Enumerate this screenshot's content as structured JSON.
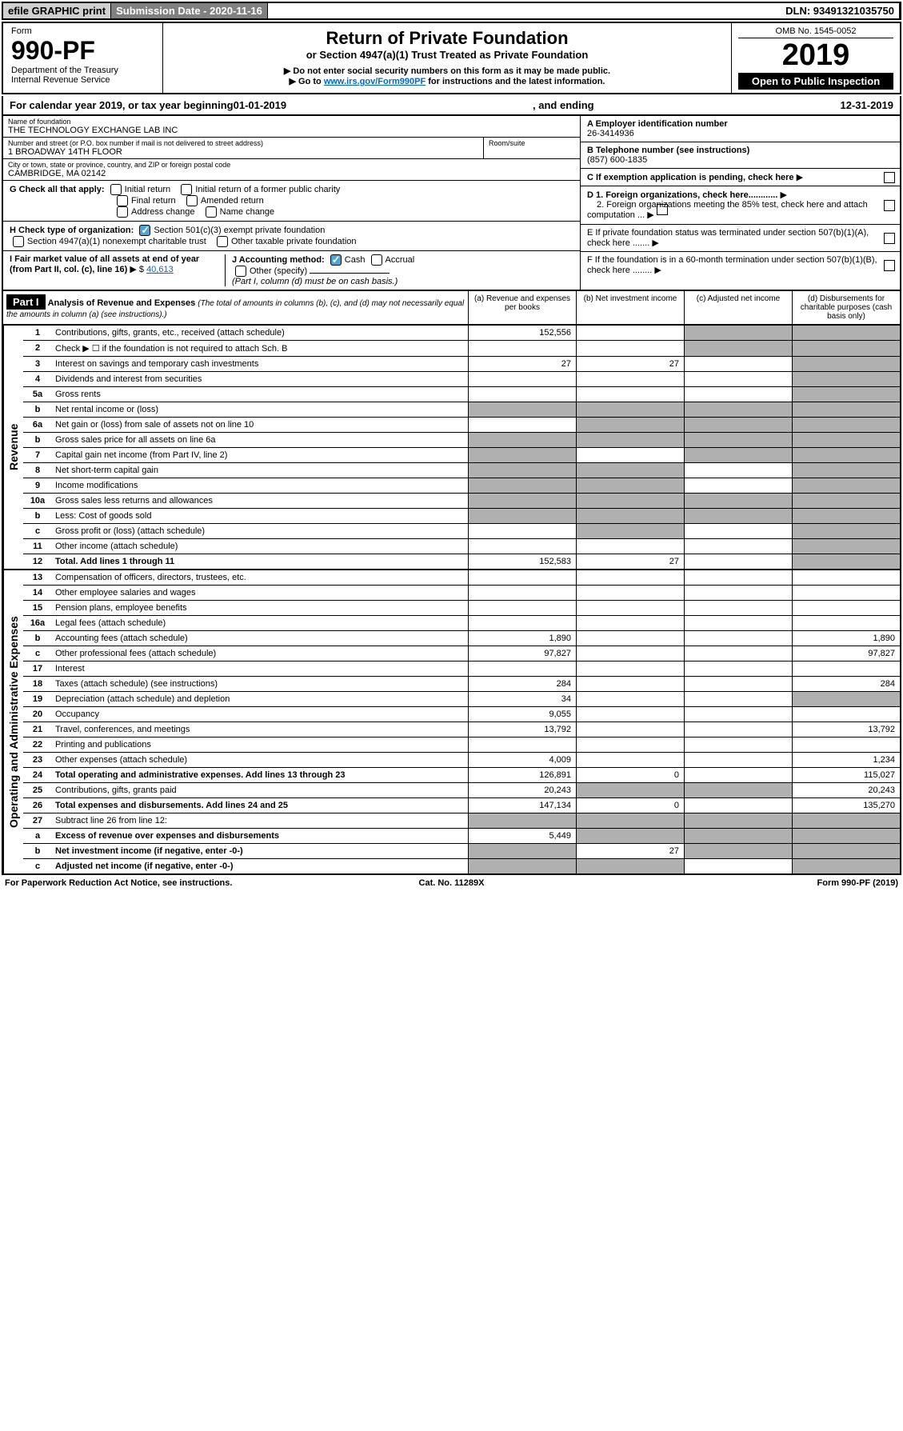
{
  "topbar": {
    "efile": "efile GRAPHIC print",
    "submission": "Submission Date - 2020-11-16",
    "dln": "DLN: 93491321035750"
  },
  "header": {
    "form_label": "Form",
    "form_num": "990-PF",
    "dept": "Department of the Treasury",
    "irs": "Internal Revenue Service",
    "title": "Return of Private Foundation",
    "subtitle": "or Section 4947(a)(1) Trust Treated as Private Foundation",
    "warn1": "Do not enter social security numbers on this form as it may be made public.",
    "warn2_prefix": "Go to ",
    "warn2_link": "www.irs.gov/Form990PF",
    "warn2_suffix": " for instructions and the latest information.",
    "omb": "OMB No. 1545-0052",
    "year": "2019",
    "open": "Open to Public Inspection"
  },
  "calyear": {
    "prefix": "For calendar year 2019, or tax year beginning ",
    "start": "01-01-2019",
    "mid": ", and ending ",
    "end": "12-31-2019"
  },
  "info": {
    "name_label": "Name of foundation",
    "name": "THE TECHNOLOGY EXCHANGE LAB INC",
    "addr_label": "Number and street (or P.O. box number if mail is not delivered to street address)",
    "addr": "1 BROADWAY 14TH FLOOR",
    "room_label": "Room/suite",
    "city_label": "City or town, state or province, country, and ZIP or foreign postal code",
    "city": "CAMBRIDGE, MA  02142",
    "ein_label": "A Employer identification number",
    "ein": "26-3414936",
    "phone_label": "B Telephone number (see instructions)",
    "phone": "(857) 600-1835",
    "c_label": "C If exemption application is pending, check here",
    "d1": "D 1. Foreign organizations, check here............",
    "d2": "2. Foreign organizations meeting the 85% test, check here and attach computation ...",
    "e_label": "E  If private foundation status was terminated under section 507(b)(1)(A), check here .......",
    "f_label": "F  If the foundation is in a 60-month termination under section 507(b)(1)(B), check here ........"
  },
  "checks": {
    "g_label": "G Check all that apply:",
    "g1": "Initial return",
    "g2": "Initial return of a former public charity",
    "g3": "Final return",
    "g4": "Amended return",
    "g5": "Address change",
    "g6": "Name change",
    "h_label": "H Check type of organization:",
    "h1": "Section 501(c)(3) exempt private foundation",
    "h2": "Section 4947(a)(1) nonexempt charitable trust",
    "h3": "Other taxable private foundation",
    "i_label": "I Fair market value of all assets at end of year (from Part II, col. (c), line 16)",
    "i_val": "40,613",
    "j_label": "J Accounting method:",
    "j1": "Cash",
    "j2": "Accrual",
    "j3": "Other (specify)",
    "j_note": "(Part I, column (d) must be on cash basis.)"
  },
  "part1": {
    "label": "Part I",
    "title": "Analysis of Revenue and Expenses",
    "title_note": "(The total of amounts in columns (b), (c), and (d) may not necessarily equal the amounts in column (a) (see instructions).)",
    "col_a": "(a)    Revenue and expenses per books",
    "col_b": "(b)  Net investment income",
    "col_c": "(c)   Adjusted net income",
    "col_d": "(d)   Disbursements for charitable purposes (cash basis only)"
  },
  "revenue_label": "Revenue",
  "expenses_label": "Operating and Administrative Expenses",
  "rows": [
    {
      "n": "1",
      "desc": "Contributions, gifts, grants, etc., received (attach schedule)",
      "a": "152,556",
      "b": "",
      "c": "s",
      "d": "s"
    },
    {
      "n": "2",
      "desc": "Check ▶ ☐ if the foundation is not required to attach Sch. B",
      "a": "",
      "b": "",
      "c": "s",
      "d": "s",
      "special": "checkbox"
    },
    {
      "n": "3",
      "desc": "Interest on savings and temporary cash investments",
      "a": "27",
      "b": "27",
      "c": "",
      "d": "s"
    },
    {
      "n": "4",
      "desc": "Dividends and interest from securities",
      "a": "",
      "b": "",
      "c": "",
      "d": "s"
    },
    {
      "n": "5a",
      "desc": "Gross rents",
      "a": "",
      "b": "",
      "c": "",
      "d": "s"
    },
    {
      "n": "b",
      "desc": "Net rental income or (loss)",
      "a": "s",
      "b": "s",
      "c": "s",
      "d": "s",
      "inline": true
    },
    {
      "n": "6a",
      "desc": "Net gain or (loss) from sale of assets not on line 10",
      "a": "",
      "b": "s",
      "c": "s",
      "d": "s"
    },
    {
      "n": "b",
      "desc": "Gross sales price for all assets on line 6a",
      "a": "s",
      "b": "s",
      "c": "s",
      "d": "s",
      "inline": true
    },
    {
      "n": "7",
      "desc": "Capital gain net income (from Part IV, line 2)",
      "a": "s",
      "b": "",
      "c": "s",
      "d": "s"
    },
    {
      "n": "8",
      "desc": "Net short-term capital gain",
      "a": "s",
      "b": "s",
      "c": "",
      "d": "s"
    },
    {
      "n": "9",
      "desc": "Income modifications",
      "a": "s",
      "b": "s",
      "c": "",
      "d": "s"
    },
    {
      "n": "10a",
      "desc": "Gross sales less returns and allowances",
      "a": "s",
      "b": "s",
      "c": "s",
      "d": "s",
      "inline": true
    },
    {
      "n": "b",
      "desc": "Less: Cost of goods sold",
      "a": "s",
      "b": "s",
      "c": "s",
      "d": "s",
      "inline": true
    },
    {
      "n": "c",
      "desc": "Gross profit or (loss) (attach schedule)",
      "a": "",
      "b": "s",
      "c": "",
      "d": "s"
    },
    {
      "n": "11",
      "desc": "Other income (attach schedule)",
      "a": "",
      "b": "",
      "c": "",
      "d": "s"
    },
    {
      "n": "12",
      "desc": "Total. Add lines 1 through 11",
      "a": "152,583",
      "b": "27",
      "c": "",
      "d": "s",
      "bold": true
    }
  ],
  "exp_rows": [
    {
      "n": "13",
      "desc": "Compensation of officers, directors, trustees, etc.",
      "a": "",
      "b": "",
      "c": "",
      "d": ""
    },
    {
      "n": "14",
      "desc": "Other employee salaries and wages",
      "a": "",
      "b": "",
      "c": "",
      "d": ""
    },
    {
      "n": "15",
      "desc": "Pension plans, employee benefits",
      "a": "",
      "b": "",
      "c": "",
      "d": ""
    },
    {
      "n": "16a",
      "desc": "Legal fees (attach schedule)",
      "a": "",
      "b": "",
      "c": "",
      "d": ""
    },
    {
      "n": "b",
      "desc": "Accounting fees (attach schedule)",
      "a": "1,890",
      "b": "",
      "c": "",
      "d": "1,890"
    },
    {
      "n": "c",
      "desc": "Other professional fees (attach schedule)",
      "a": "97,827",
      "b": "",
      "c": "",
      "d": "97,827"
    },
    {
      "n": "17",
      "desc": "Interest",
      "a": "",
      "b": "",
      "c": "",
      "d": ""
    },
    {
      "n": "18",
      "desc": "Taxes (attach schedule) (see instructions)",
      "a": "284",
      "b": "",
      "c": "",
      "d": "284"
    },
    {
      "n": "19",
      "desc": "Depreciation (attach schedule) and depletion",
      "a": "34",
      "b": "",
      "c": "",
      "d": "s"
    },
    {
      "n": "20",
      "desc": "Occupancy",
      "a": "9,055",
      "b": "",
      "c": "",
      "d": ""
    },
    {
      "n": "21",
      "desc": "Travel, conferences, and meetings",
      "a": "13,792",
      "b": "",
      "c": "",
      "d": "13,792"
    },
    {
      "n": "22",
      "desc": "Printing and publications",
      "a": "",
      "b": "",
      "c": "",
      "d": ""
    },
    {
      "n": "23",
      "desc": "Other expenses (attach schedule)",
      "a": "4,009",
      "b": "",
      "c": "",
      "d": "1,234"
    },
    {
      "n": "24",
      "desc": "Total operating and administrative expenses. Add lines 13 through 23",
      "a": "126,891",
      "b": "0",
      "c": "",
      "d": "115,027",
      "bold": true
    },
    {
      "n": "25",
      "desc": "Contributions, gifts, grants paid",
      "a": "20,243",
      "b": "s",
      "c": "s",
      "d": "20,243"
    },
    {
      "n": "26",
      "desc": "Total expenses and disbursements. Add lines 24 and 25",
      "a": "147,134",
      "b": "0",
      "c": "",
      "d": "135,270",
      "bold": true
    },
    {
      "n": "27",
      "desc": "Subtract line 26 from line 12:",
      "a": "s",
      "b": "s",
      "c": "s",
      "d": "s"
    },
    {
      "n": "a",
      "desc": "Excess of revenue over expenses and disbursements",
      "a": "5,449",
      "b": "s",
      "c": "s",
      "d": "s",
      "bold": true
    },
    {
      "n": "b",
      "desc": "Net investment income (if negative, enter -0-)",
      "a": "s",
      "b": "27",
      "c": "s",
      "d": "s",
      "bold": true
    },
    {
      "n": "c",
      "desc": "Adjusted net income (if negative, enter -0-)",
      "a": "s",
      "b": "s",
      "c": "",
      "d": "s",
      "bold": true
    }
  ],
  "footer": {
    "left": "For Paperwork Reduction Act Notice, see instructions.",
    "mid": "Cat. No. 11289X",
    "right": "Form 990-PF (2019)"
  }
}
